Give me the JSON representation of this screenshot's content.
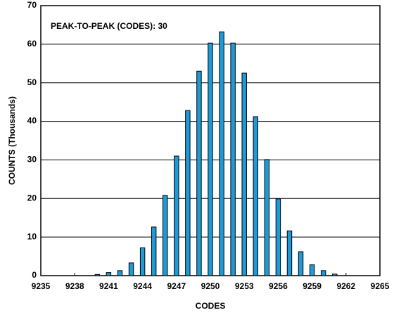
{
  "chart_data": {
    "type": "bar",
    "annotation": "PEAK-TO-PEAK (CODES): 30",
    "xlabel": "CODES",
    "ylabel": "COUNTS (Thousands)",
    "x": [
      9240,
      9241,
      9242,
      9243,
      9244,
      9245,
      9246,
      9247,
      9248,
      9249,
      9250,
      9251,
      9252,
      9253,
      9254,
      9255,
      9256,
      9257,
      9258,
      9259,
      9260,
      9261
    ],
    "values": [
      0.3,
      0.8,
      1.3,
      3.3,
      7.2,
      12.6,
      20.8,
      31,
      42.8,
      53,
      60.3,
      63.2,
      60.3,
      52.5,
      41.2,
      30.1,
      19.9,
      11.6,
      6.2,
      2.8,
      1.3,
      0.4
    ],
    "color": "#1e9ad6",
    "xlim": [
      9235,
      9265
    ],
    "xticks": [
      9235,
      9238,
      9241,
      9244,
      9247,
      9250,
      9253,
      9256,
      9259,
      9262,
      9265
    ],
    "ylim": [
      0,
      70
    ],
    "yticks": [
      0,
      10,
      20,
      30,
      40,
      50,
      60,
      70
    ],
    "grid": true
  }
}
